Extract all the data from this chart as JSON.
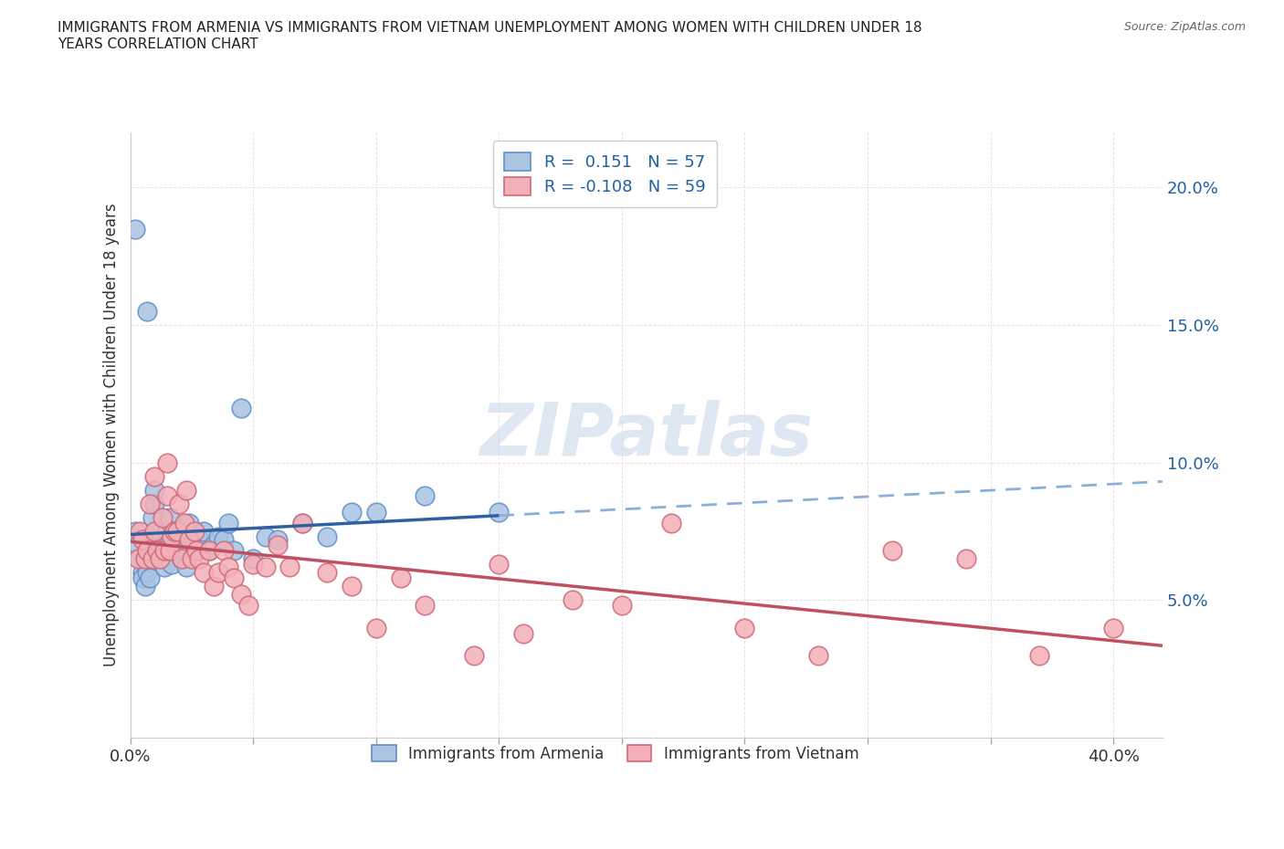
{
  "title": "IMMIGRANTS FROM ARMENIA VS IMMIGRANTS FROM VIETNAM UNEMPLOYMENT AMONG WOMEN WITH CHILDREN UNDER 18\nYEARS CORRELATION CHART",
  "source": "Source: ZipAtlas.com",
  "ylabel": "Unemployment Among Women with Children Under 18 years",
  "ylim": [
    0.0,
    0.22
  ],
  "xlim": [
    0.0,
    0.42
  ],
  "yticks": [
    0.0,
    0.05,
    0.1,
    0.15,
    0.2
  ],
  "ytick_labels": [
    "",
    "5.0%",
    "10.0%",
    "15.0%",
    "20.0%"
  ],
  "xticks": [
    0.0,
    0.05,
    0.1,
    0.15,
    0.2,
    0.25,
    0.3,
    0.35,
    0.4
  ],
  "xtick_labels": [
    "0.0%",
    "",
    "",
    "",
    "",
    "",
    "",
    "",
    "40.0%"
  ],
  "armenia_color": "#aac4e2",
  "armenia_edge": "#6090c8",
  "vietnam_color": "#f4b0b8",
  "vietnam_edge": "#d06878",
  "trend_armenia_color": "#3060a0",
  "trend_vietnam_color": "#c05060",
  "trend_armenia_dashed_color": "#8ab0d8",
  "R_armenia": 0.151,
  "N_armenia": 57,
  "R_vietnam": -0.108,
  "N_vietnam": 59,
  "watermark": "ZIPatlas",
  "background_color": "#ffffff",
  "armenia_x": [
    0.002,
    0.007,
    0.002,
    0.003,
    0.004,
    0.005,
    0.005,
    0.006,
    0.006,
    0.007,
    0.007,
    0.008,
    0.008,
    0.009,
    0.009,
    0.01,
    0.01,
    0.011,
    0.011,
    0.012,
    0.012,
    0.013,
    0.013,
    0.014,
    0.015,
    0.015,
    0.016,
    0.016,
    0.017,
    0.018,
    0.019,
    0.02,
    0.021,
    0.022,
    0.023,
    0.024,
    0.025,
    0.026,
    0.027,
    0.028,
    0.03,
    0.032,
    0.034,
    0.036,
    0.038,
    0.04,
    0.042,
    0.045,
    0.05,
    0.055,
    0.06,
    0.07,
    0.08,
    0.09,
    0.1,
    0.12,
    0.15
  ],
  "armenia_y": [
    0.185,
    0.155,
    0.075,
    0.07,
    0.065,
    0.06,
    0.058,
    0.055,
    0.065,
    0.062,
    0.06,
    0.058,
    0.068,
    0.065,
    0.08,
    0.085,
    0.09,
    0.068,
    0.072,
    0.068,
    0.075,
    0.065,
    0.07,
    0.062,
    0.068,
    0.075,
    0.072,
    0.08,
    0.063,
    0.075,
    0.068,
    0.072,
    0.065,
    0.068,
    0.062,
    0.078,
    0.073,
    0.07,
    0.068,
    0.072,
    0.075,
    0.068,
    0.07,
    0.073,
    0.072,
    0.078,
    0.068,
    0.12,
    0.065,
    0.073,
    0.072,
    0.078,
    0.073,
    0.082,
    0.082,
    0.088,
    0.082
  ],
  "vietnam_x": [
    0.003,
    0.004,
    0.005,
    0.006,
    0.007,
    0.008,
    0.009,
    0.01,
    0.01,
    0.011,
    0.012,
    0.013,
    0.014,
    0.015,
    0.015,
    0.016,
    0.017,
    0.018,
    0.019,
    0.02,
    0.021,
    0.022,
    0.023,
    0.024,
    0.025,
    0.026,
    0.027,
    0.028,
    0.03,
    0.032,
    0.034,
    0.036,
    0.038,
    0.04,
    0.042,
    0.045,
    0.048,
    0.05,
    0.055,
    0.06,
    0.065,
    0.07,
    0.08,
    0.09,
    0.1,
    0.11,
    0.12,
    0.14,
    0.15,
    0.16,
    0.18,
    0.2,
    0.22,
    0.25,
    0.28,
    0.31,
    0.34,
    0.37,
    0.4
  ],
  "vietnam_y": [
    0.065,
    0.075,
    0.072,
    0.065,
    0.068,
    0.085,
    0.065,
    0.095,
    0.075,
    0.068,
    0.065,
    0.08,
    0.068,
    0.1,
    0.088,
    0.068,
    0.073,
    0.075,
    0.075,
    0.085,
    0.065,
    0.078,
    0.09,
    0.072,
    0.065,
    0.075,
    0.068,
    0.065,
    0.06,
    0.068,
    0.055,
    0.06,
    0.068,
    0.062,
    0.058,
    0.052,
    0.048,
    0.063,
    0.062,
    0.07,
    0.062,
    0.078,
    0.06,
    0.055,
    0.04,
    0.058,
    0.048,
    0.03,
    0.063,
    0.038,
    0.05,
    0.048,
    0.078,
    0.04,
    0.03,
    0.068,
    0.065,
    0.03,
    0.04
  ]
}
